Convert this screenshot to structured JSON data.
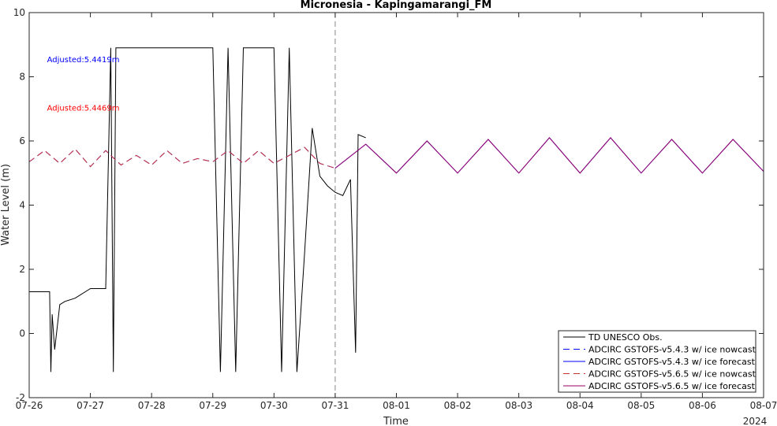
{
  "chart_data": {
    "type": "line",
    "title": "Micronesia - Kapingamarangi_FM",
    "xlabel": "Time",
    "ylabel": "Water Level (m)",
    "year_label": "2024",
    "xlim": [
      "2024-07-26",
      "2024-08-07"
    ],
    "ylim": [
      -2,
      10
    ],
    "x_ticks": [
      "07-26",
      "07-27",
      "07-28",
      "07-29",
      "07-30",
      "07-31",
      "08-01",
      "08-02",
      "08-03",
      "08-04",
      "08-05",
      "08-06",
      "08-07"
    ],
    "y_ticks": [
      -2,
      0,
      2,
      4,
      6,
      8,
      10
    ],
    "grid": false,
    "legend_position": "bottom-right",
    "vline_date": "2024-07-31",
    "annotations": [
      {
        "text": "Adjusted:5.4419m",
        "color": "#0000ff",
        "x": "2024-07-26T07:00",
        "y": 8.45
      },
      {
        "text": "Adjusted:5.4469m",
        "color": "#ff0000",
        "x": "2024-07-26T07:00",
        "y": 6.95
      }
    ],
    "series": [
      {
        "name": "TD UNESCO Obs.",
        "color": "#000000",
        "style": "solid",
        "x": [
          "2024-07-26T00:00",
          "2024-07-26T08:00",
          "2024-07-26T08:30",
          "2024-07-26T09:00",
          "2024-07-26T10:00",
          "2024-07-26T12:00",
          "2024-07-26T14:00",
          "2024-07-26T18:00",
          "2024-07-27T00:00",
          "2024-07-27T06:00",
          "2024-07-27T08:00",
          "2024-07-27T09:00",
          "2024-07-27T10:00",
          "2024-07-27T12:00",
          "2024-07-27T18:00",
          "2024-07-28T00:00",
          "2024-07-28T06:00",
          "2024-07-28T12:00",
          "2024-07-28T18:00",
          "2024-07-29T00:00",
          "2024-07-29T03:00",
          "2024-07-29T06:00",
          "2024-07-29T09:00",
          "2024-07-29T12:00",
          "2024-07-29T18:00",
          "2024-07-30T00:00",
          "2024-07-30T03:00",
          "2024-07-30T06:00",
          "2024-07-30T09:00",
          "2024-07-30T12:00",
          "2024-07-30T15:00",
          "2024-07-30T18:00",
          "2024-07-30T21:00",
          "2024-07-31T00:00",
          "2024-07-31T03:00",
          "2024-07-31T06:00",
          "2024-07-31T08:00",
          "2024-07-31T09:00",
          "2024-07-31T12:00"
        ],
        "y": [
          1.3,
          1.3,
          -1.2,
          0.6,
          -0.5,
          0.9,
          1.0,
          1.1,
          1.4,
          1.4,
          8.9,
          -1.2,
          8.9,
          8.9,
          8.9,
          8.9,
          8.9,
          8.9,
          8.9,
          8.9,
          -1.2,
          8.9,
          -1.2,
          8.9,
          8.9,
          8.9,
          -1.2,
          8.9,
          -1.2,
          2.5,
          6.4,
          4.9,
          4.6,
          4.4,
          4.3,
          4.8,
          -0.6,
          6.2,
          6.1
        ]
      },
      {
        "name": "ADCIRC GSTOFS-v5.4.3 w/ ice nowcast",
        "color": "#0000ff",
        "style": "dashed",
        "x": [
          "2024-07-26T00:00",
          "2024-07-26T06:00",
          "2024-07-26T12:00",
          "2024-07-26T18:00",
          "2024-07-27T00:00",
          "2024-07-27T06:00",
          "2024-07-27T12:00",
          "2024-07-27T18:00",
          "2024-07-28T00:00",
          "2024-07-28T06:00",
          "2024-07-28T12:00",
          "2024-07-28T18:00",
          "2024-07-29T00:00",
          "2024-07-29T06:00",
          "2024-07-29T12:00",
          "2024-07-29T18:00",
          "2024-07-30T00:00",
          "2024-07-30T06:00",
          "2024-07-30T12:00",
          "2024-07-30T18:00",
          "2024-07-31T00:00"
        ],
        "y": [
          5.35,
          5.7,
          5.3,
          5.75,
          5.2,
          5.7,
          5.25,
          5.55,
          5.25,
          5.7,
          5.3,
          5.45,
          5.35,
          5.7,
          5.3,
          5.7,
          5.3,
          5.55,
          5.8,
          5.3,
          5.15
        ]
      },
      {
        "name": "ADCIRC GSTOFS-v5.4.3 w/ ice forecast",
        "color": "#0000ff",
        "style": "solid",
        "x": [
          "2024-07-31T00:00",
          "2024-07-31T12:00",
          "2024-08-01T00:00",
          "2024-08-01T12:00",
          "2024-08-02T00:00",
          "2024-08-02T12:00",
          "2024-08-03T00:00",
          "2024-08-03T12:00",
          "2024-08-04T00:00",
          "2024-08-04T12:00",
          "2024-08-05T00:00",
          "2024-08-05T12:00",
          "2024-08-06T00:00",
          "2024-08-06T12:00",
          "2024-08-07T00:00"
        ],
        "y": [
          5.15,
          5.9,
          5.0,
          6.0,
          5.0,
          6.05,
          5.0,
          6.1,
          5.0,
          6.1,
          5.0,
          6.05,
          5.0,
          6.05,
          5.05
        ]
      },
      {
        "name": "ADCIRC GSTOFS-v5.6.5 w/ ice nowcast",
        "color": "#cc3333",
        "style": "dashed",
        "x": [
          "2024-07-26T00:00",
          "2024-07-26T06:00",
          "2024-07-26T12:00",
          "2024-07-26T18:00",
          "2024-07-27T00:00",
          "2024-07-27T06:00",
          "2024-07-27T12:00",
          "2024-07-27T18:00",
          "2024-07-28T00:00",
          "2024-07-28T06:00",
          "2024-07-28T12:00",
          "2024-07-28T18:00",
          "2024-07-29T00:00",
          "2024-07-29T06:00",
          "2024-07-29T12:00",
          "2024-07-29T18:00",
          "2024-07-30T00:00",
          "2024-07-30T06:00",
          "2024-07-30T12:00",
          "2024-07-30T18:00",
          "2024-07-31T00:00"
        ],
        "y": [
          5.35,
          5.7,
          5.3,
          5.75,
          5.2,
          5.7,
          5.25,
          5.55,
          5.25,
          5.7,
          5.3,
          5.45,
          5.35,
          5.7,
          5.3,
          5.7,
          5.3,
          5.55,
          5.8,
          5.3,
          5.15
        ]
      },
      {
        "name": "ADCIRC GSTOFS-v5.6.5 w/ ice forecast",
        "color": "#990066",
        "style": "solid",
        "x": [
          "2024-07-31T00:00",
          "2024-07-31T12:00",
          "2024-08-01T00:00",
          "2024-08-01T12:00",
          "2024-08-02T00:00",
          "2024-08-02T12:00",
          "2024-08-03T00:00",
          "2024-08-03T12:00",
          "2024-08-04T00:00",
          "2024-08-04T12:00",
          "2024-08-05T00:00",
          "2024-08-05T12:00",
          "2024-08-06T00:00",
          "2024-08-06T12:00",
          "2024-08-07T00:00"
        ],
        "y": [
          5.15,
          5.9,
          5.0,
          6.0,
          5.0,
          6.05,
          5.0,
          6.1,
          5.0,
          6.1,
          5.0,
          6.05,
          5.0,
          6.05,
          5.05
        ]
      }
    ]
  }
}
